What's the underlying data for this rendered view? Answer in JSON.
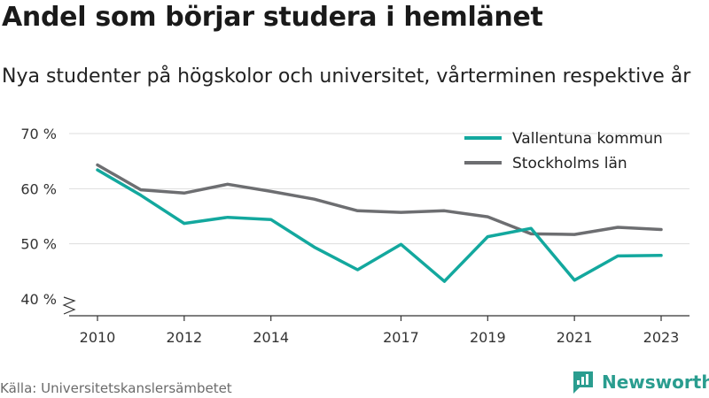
{
  "title": "Andel som börjar studera i hemlänet",
  "subtitle": "Nya studenter på högskolor och universitet, vårterminen respektive år",
  "source": "Källa: Universitetskanslersämbetet",
  "brand": "Newsworthy",
  "colors": {
    "series1": "#13a89e",
    "series2": "#6d6e71",
    "grid": "#dddddd",
    "axis": "#333333"
  },
  "chart_data": {
    "type": "line",
    "ylim": [
      40,
      70
    ],
    "yticks": [
      40,
      50,
      60,
      70
    ],
    "ytick_labels": [
      "40 %",
      "50 %",
      "60 %",
      "70 %"
    ],
    "xlim": [
      2010,
      2023
    ],
    "xticks": [
      2010,
      2012,
      2014,
      2017,
      2019,
      2021,
      2023
    ],
    "xtick_labels": [
      "2010",
      "2012",
      "2014",
      "2017",
      "2019",
      "2021",
      "2023"
    ],
    "grid": true,
    "legend": "top-right",
    "series": [
      {
        "name": "Vallentuna kommun",
        "color": "#13a89e",
        "x": [
          2010,
          2011,
          2012,
          2013,
          2014,
          2015,
          2016,
          2017,
          2018,
          2019,
          2020,
          2021,
          2022,
          2023
        ],
        "values": [
          63.4,
          58.8,
          53.7,
          54.8,
          54.4,
          49.4,
          45.3,
          49.9,
          43.2,
          51.3,
          52.8,
          43.4,
          47.8,
          47.9
        ]
      },
      {
        "name": "Stockholms län",
        "color": "#6d6e71",
        "x": [
          2010,
          2011,
          2012,
          2013,
          2014,
          2015,
          2016,
          2017,
          2018,
          2019,
          2020,
          2021,
          2022,
          2023
        ],
        "values": [
          64.3,
          59.8,
          59.2,
          60.8,
          59.5,
          58.1,
          56.0,
          55.7,
          56.0,
          54.9,
          51.8,
          51.7,
          53.0,
          52.6
        ]
      }
    ]
  }
}
